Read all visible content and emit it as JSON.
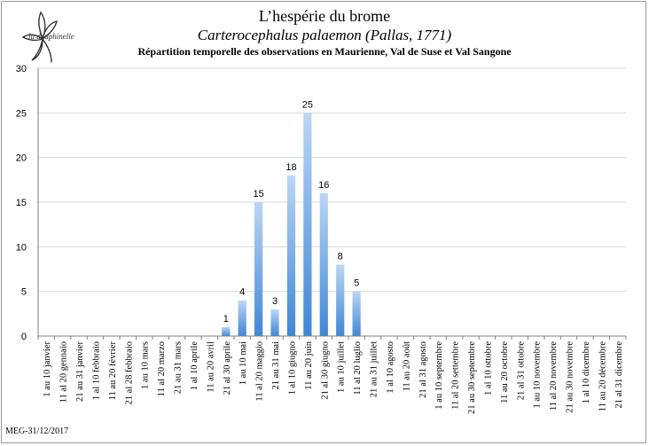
{
  "logo": {
    "text": "la dauphinelle"
  },
  "header": {
    "title": "L’hespérie du brome",
    "subtitle": "Carterocephalus palaemon (Pallas, 1771)",
    "description": "Répartition temporelle des observations en Maurienne, Val de Suse et Val Sangone"
  },
  "footer": {
    "text": "MEG-31/12/2017"
  },
  "colors": {
    "bar_top": "#bcd6f4",
    "bar_bottom": "#3f86d6",
    "grid": "#d9d9d9",
    "axis": "#7f7f7f"
  },
  "chart_data": {
    "type": "bar",
    "title": "L’hespérie du brome",
    "xlabel": "",
    "ylabel": "",
    "ylim": [
      0,
      30
    ],
    "yticks": [
      0,
      5,
      10,
      15,
      20,
      25,
      30
    ],
    "grid": true,
    "categories": [
      "1 au 10 janvier",
      "11 al 20 gennaio",
      "21 au 31 janvier",
      "1 al 10 febbraio",
      "11 au 20 février",
      "21 al 28 febbraio",
      "1 au 10 mars",
      "11 al 20 marzo",
      "21 au 31 mars",
      "1 al 10 aprile",
      "11 au 20 avril",
      "21 al 30 aprile",
      "1 au 10 mai",
      "11 al 20 maggio",
      "21 au 31 mai",
      "1 al 10 giugno",
      "11 au 20 juin",
      "21 al 30 giugno",
      "1 au 10 juillet",
      "11 al 20 luglio",
      "21 au 31 juillet",
      "1 al 10 agosto",
      "11 au 20 août",
      "21 al 31 agosto",
      "1 au 10 septembre",
      "11 al 20 settembre",
      "21 au 30 septembre",
      "1 al 10 ottobre",
      "11 au 20 octobre",
      "21 al 31 ottobre",
      "1 au 10 novembre",
      "11 al 20 novembre",
      "21 au 30 novembre",
      "1 al 10 dicembre",
      "11 au 20 décembre",
      "21 al 31 dicembre"
    ],
    "values": [
      0,
      0,
      0,
      0,
      0,
      0,
      0,
      0,
      0,
      0,
      0,
      1,
      4,
      15,
      3,
      18,
      25,
      16,
      8,
      5,
      0,
      0,
      0,
      0,
      0,
      0,
      0,
      0,
      0,
      0,
      0,
      0,
      0,
      0,
      0,
      0
    ],
    "data_labels": [
      "",
      "",
      "",
      "",
      "",
      "",
      "",
      "",
      "",
      "",
      "",
      "1",
      "4",
      "15",
      "3",
      "18",
      "25",
      "16",
      "8",
      "5",
      "",
      "",
      "",
      "",
      "",
      "",
      "",
      "",
      "",
      "",
      "",
      "",
      "",
      "",
      "",
      ""
    ]
  }
}
